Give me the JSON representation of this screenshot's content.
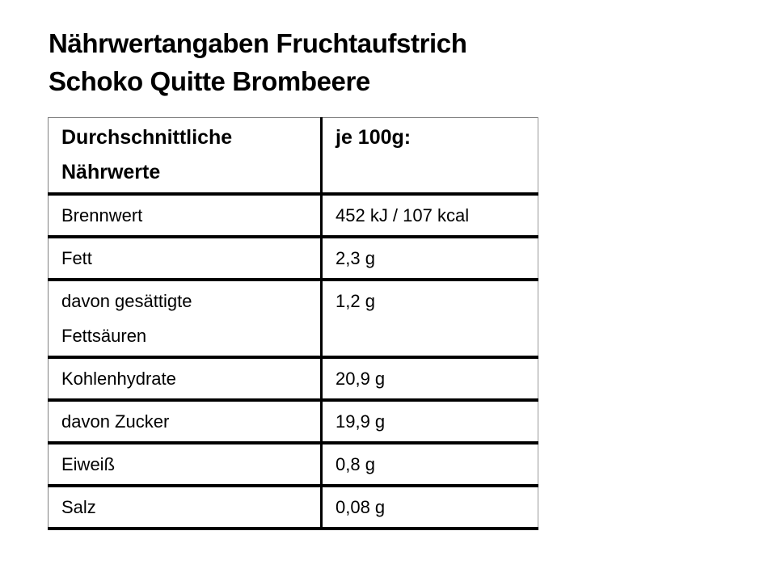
{
  "document": {
    "title_line1": "Nährwertangaben Fruchtaufstrich",
    "title_line2": "Schoko Quitte Brombeere"
  },
  "table": {
    "header": {
      "nutrients": "Durchschnittliche\nNährwerte",
      "per_100g": "je 100g:"
    },
    "rows": [
      {
        "label": "Brennwert",
        "value": "452 kJ / 107 kcal"
      },
      {
        "label": "Fett",
        "value": "2,3 g"
      },
      {
        "label": "davon gesättigte\nFettsäuren",
        "value": "1,2 g"
      },
      {
        "label": "Kohlenhydrate",
        "value": "20,9 g"
      },
      {
        "label": "davon Zucker",
        "value": "19,9 g"
      },
      {
        "label": "Eiweiß",
        "value": "0,8 g"
      },
      {
        "label": "Salz",
        "value": "0,08 g"
      }
    ]
  },
  "colors": {
    "text": "#000000",
    "background": "#ffffff",
    "table_grid_heavy": "#000000",
    "table_grid_light": "#808080"
  }
}
